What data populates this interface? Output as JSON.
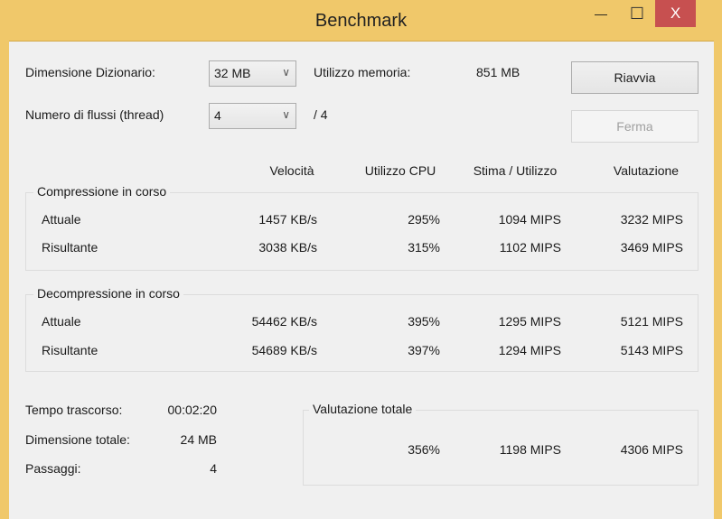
{
  "window": {
    "title": "Benchmark",
    "minimize": "—",
    "maximize": "☐",
    "close": "X"
  },
  "settings": {
    "dict_label": "Dimensione Dizionario:",
    "dict_value": "32 MB",
    "threads_label": "Numero di flussi (thread)",
    "threads_value": "4",
    "threads_max": "/ 4",
    "memory_label": "Utilizzo memoria:",
    "memory_value": "851 MB",
    "restart": "Riavvia",
    "stop": "Ferma"
  },
  "columns": [
    "Velocità",
    "Utilizzo CPU",
    "Stima / Utilizzo",
    "Valutazione"
  ],
  "compression": {
    "title": "Compressione in corso",
    "rows": [
      {
        "label": "Attuale",
        "speed": "1457 KB/s",
        "cpu": "295%",
        "est": "1094 MIPS",
        "rating": "3232 MIPS"
      },
      {
        "label": "Risultante",
        "speed": "3038 KB/s",
        "cpu": "315%",
        "est": "1102 MIPS",
        "rating": "3469 MIPS"
      }
    ]
  },
  "decompression": {
    "title": "Decompressione in corso",
    "rows": [
      {
        "label": "Attuale",
        "speed": "54462 KB/s",
        "cpu": "395%",
        "est": "1295 MIPS",
        "rating": "5121 MIPS"
      },
      {
        "label": "Risultante",
        "speed": "54689 KB/s",
        "cpu": "397%",
        "est": "1294 MIPS",
        "rating": "5143 MIPS"
      }
    ]
  },
  "stats": {
    "elapsed_label": "Tempo trascorso:",
    "elapsed": "00:02:20",
    "size_label": "Dimensione totale:",
    "size": "24 MB",
    "passes_label": "Passaggi:",
    "passes": "4"
  },
  "total": {
    "title": "Valutazione totale",
    "cpu": "356%",
    "est": "1198 MIPS",
    "rating": "4306 MIPS"
  }
}
